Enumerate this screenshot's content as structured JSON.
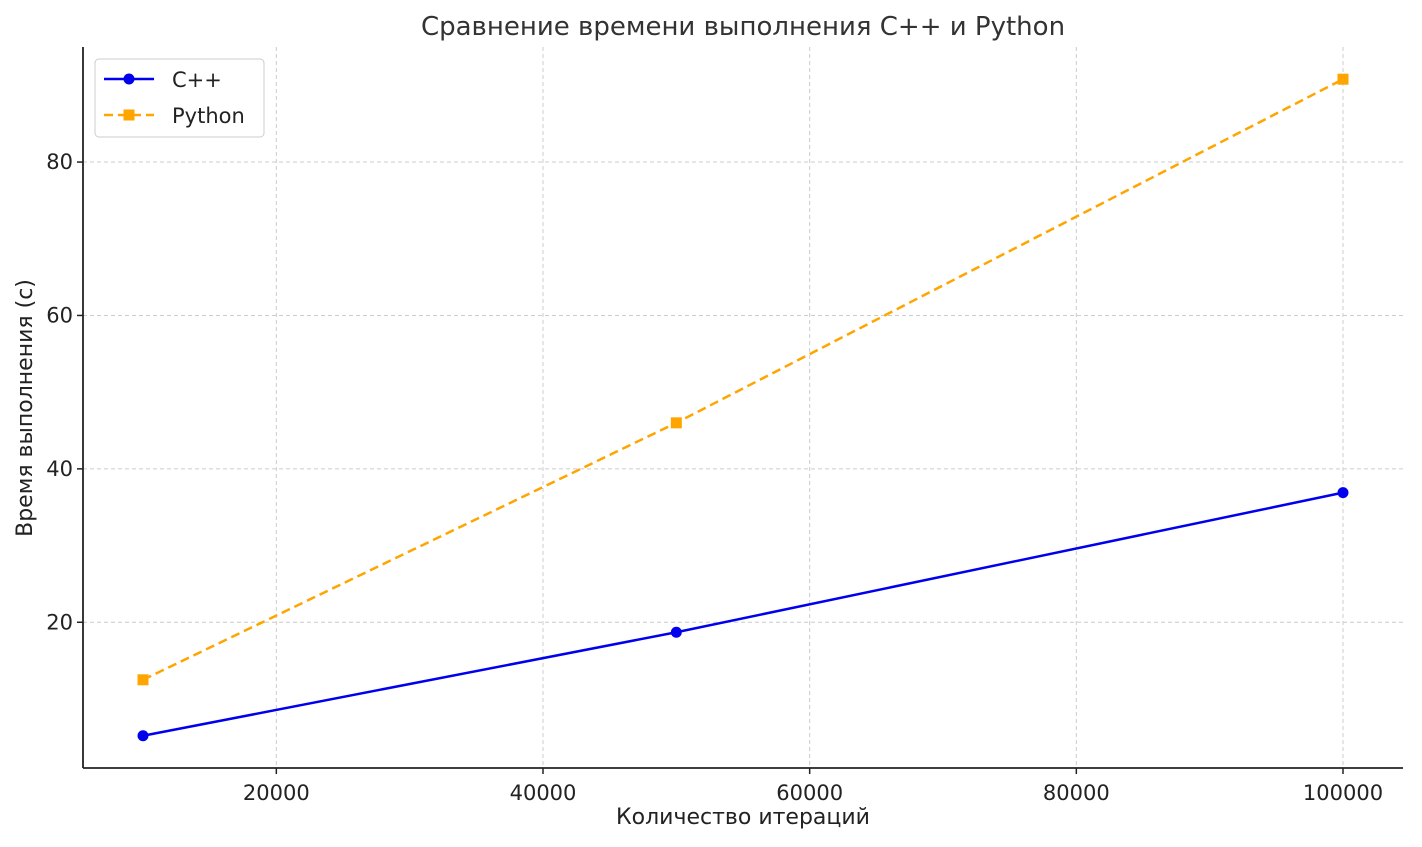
{
  "chart_data": {
    "type": "line",
    "title": "Сравнение времени выполнения C++ и Python",
    "xlabel": "Количество итераций",
    "ylabel": "Время выполнения (с)",
    "x": [
      10000,
      50000,
      100000
    ],
    "xlim": [
      5500,
      104500
    ],
    "ylim": [
      1,
      95
    ],
    "xticks": [
      20000,
      40000,
      60000,
      80000,
      100000
    ],
    "yticks": [
      20,
      40,
      60,
      80
    ],
    "grid": true,
    "legend_position": "top-left",
    "series": [
      {
        "name": "C++",
        "values": [
          5.2,
          18.7,
          36.9
        ],
        "color": "#0000ee",
        "style": "solid",
        "marker": "circle"
      },
      {
        "name": "Python",
        "values": [
          12.5,
          46.0,
          90.8
        ],
        "color": "#ffa500",
        "style": "dashed",
        "marker": "square"
      }
    ]
  }
}
